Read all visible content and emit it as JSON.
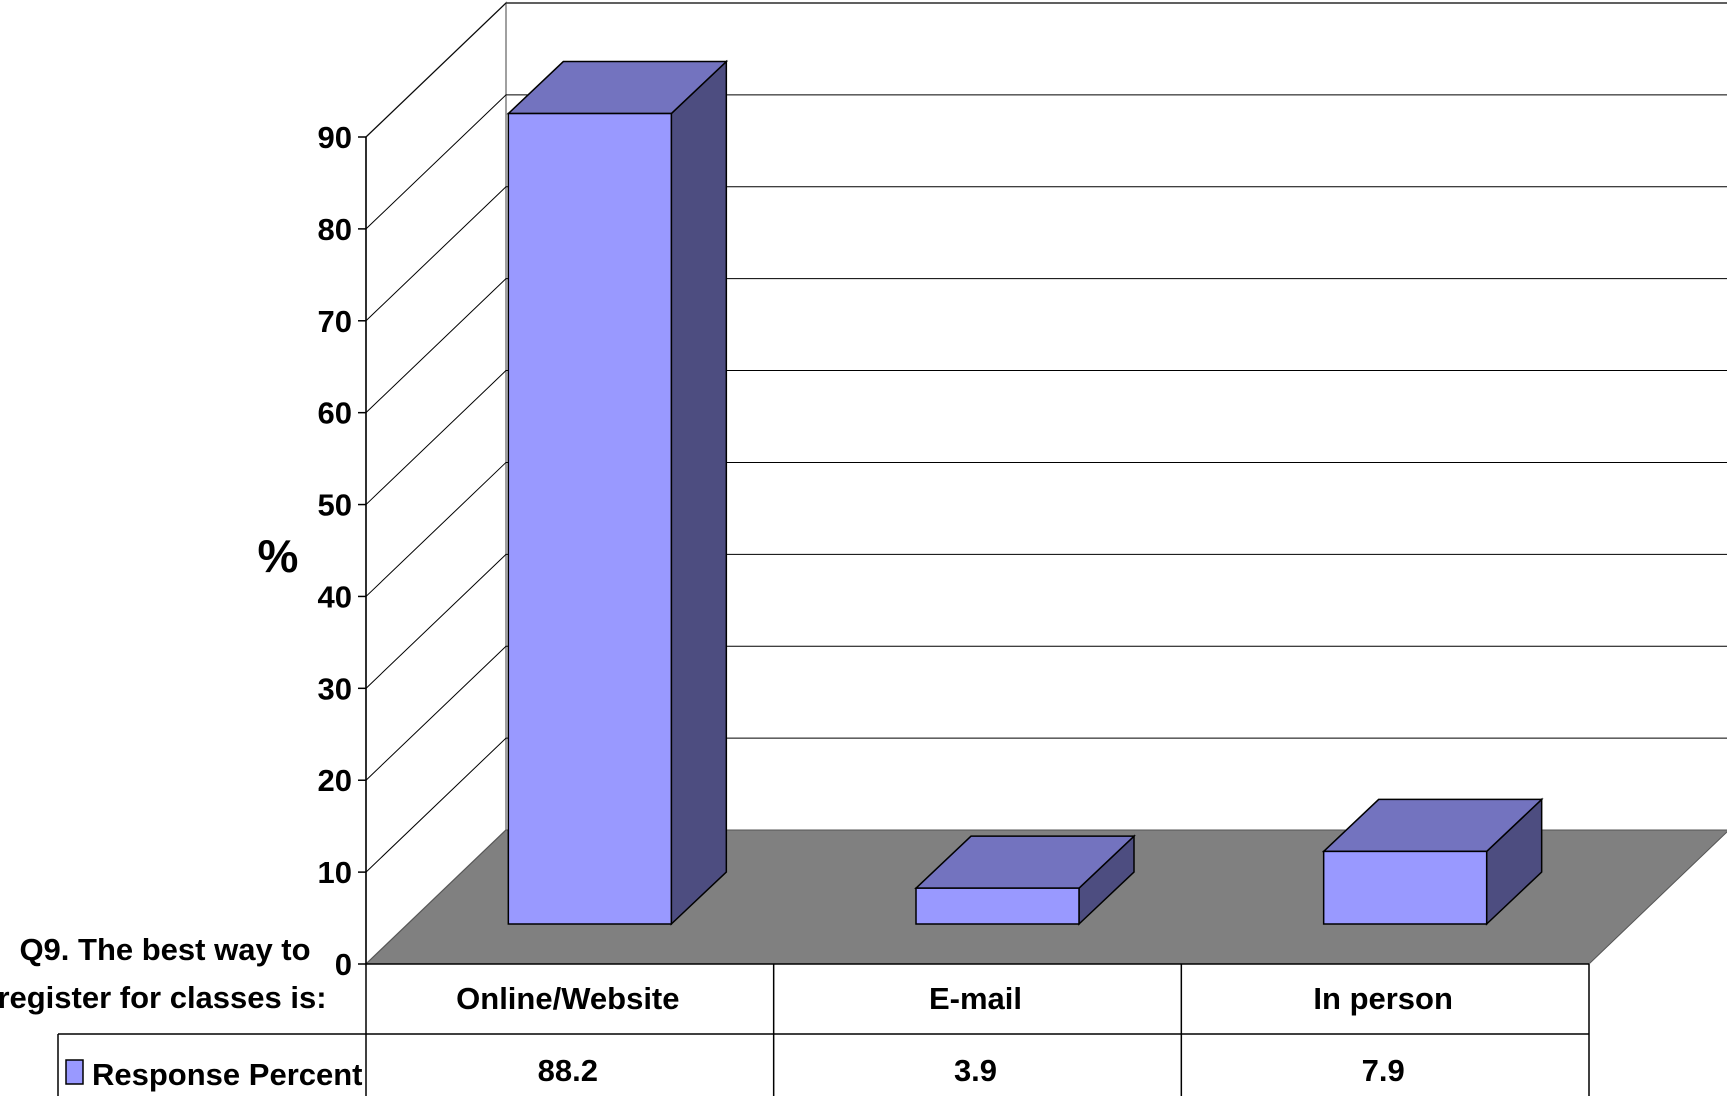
{
  "chart_data": {
    "type": "bar",
    "title": "Q9. The best way to register for classes is:",
    "title_lines": [
      "Q9. The best way to",
      "register for classes is:"
    ],
    "ylabel": "%",
    "xlabel": "",
    "ylim": [
      0,
      90
    ],
    "yticks": [
      0,
      10,
      20,
      30,
      40,
      50,
      60,
      70,
      80,
      90
    ],
    "grid": true,
    "three_d": true,
    "categories": [
      "Online/Website",
      "E-mail",
      "In person"
    ],
    "series": [
      {
        "name": "Response Percent",
        "values": [
          88.2,
          3.9,
          7.9
        ],
        "value_labels": [
          "88.2",
          "3.9",
          "7.9"
        ],
        "color": "#9999ff"
      }
    ],
    "legend": "data-table-left",
    "colors": {
      "bar_front": "#9999ff",
      "bar_top": "#7373bf",
      "bar_side": "#4d4d80",
      "floor": "#808080",
      "grid": "#000000"
    }
  }
}
